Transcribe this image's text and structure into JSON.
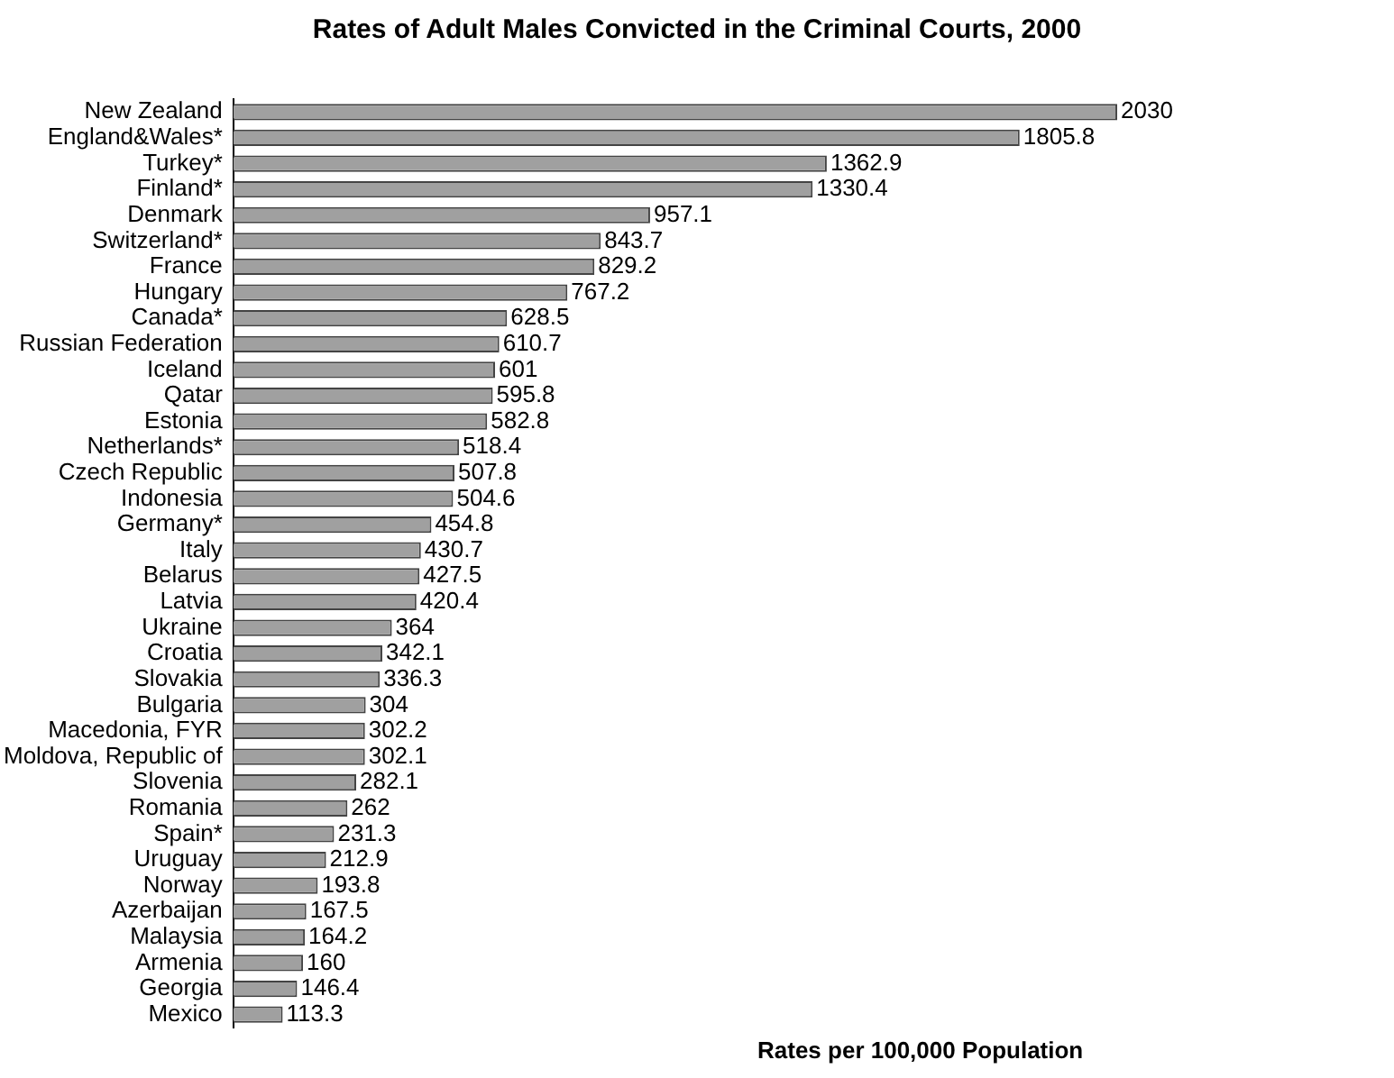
{
  "chart_data": {
    "type": "bar",
    "orientation": "horizontal",
    "title": "Rates of Adult Males Convicted  in the Criminal Courts, 2000",
    "xlabel": "Rates per 100,000 Population",
    "categories": [
      "New Zealand",
      "England&Wales*",
      "Turkey*",
      "Finland*",
      "Denmark",
      "Switzerland*",
      "France",
      "Hungary",
      "Canada*",
      "Russian Federation",
      "Iceland",
      "Qatar",
      "Estonia",
      "Netherlands*",
      "Czech Republic",
      "Indonesia",
      "Germany*",
      "Italy",
      "Belarus",
      "Latvia",
      "Ukraine",
      "Croatia",
      "Slovakia",
      "Bulgaria",
      "Macedonia, FYR",
      "Moldova, Republic of",
      "Slovenia",
      "Romania",
      "Spain*",
      "Uruguay",
      "Norway",
      "Azerbaijan",
      "Malaysia",
      "Armenia",
      "Georgia",
      "Mexico"
    ],
    "values": [
      2030,
      1805.8,
      1362.9,
      1330.4,
      957.1,
      843.7,
      829.2,
      767.2,
      628.5,
      610.7,
      601,
      595.8,
      582.8,
      518.4,
      507.8,
      504.6,
      454.8,
      430.7,
      427.5,
      420.4,
      364,
      342.1,
      336.3,
      304,
      302.2,
      302.1,
      282.1,
      262,
      231.3,
      212.9,
      193.8,
      167.5,
      164.2,
      160,
      146.4,
      113.3
    ],
    "color": "#a0a0a0",
    "data_labels": true,
    "legend": false
  }
}
